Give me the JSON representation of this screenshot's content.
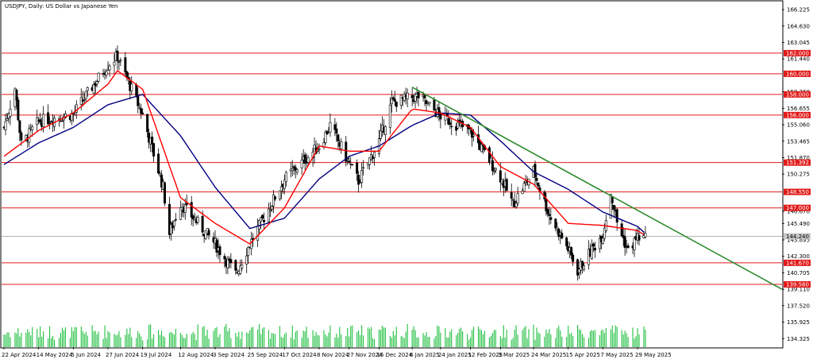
{
  "chart_title": "USDJPY, Daily:  US Dollar vs Japanese Yen",
  "price_scale_ticks": [
    "166.225",
    "164.630",
    "163.045",
    "161.440",
    "158.260",
    "156.655",
    "155.060",
    "153.465",
    "151.870",
    "150.275",
    "146.670",
    "145.490",
    "143.895",
    "142.300",
    "140.705",
    "139.110",
    "137.520",
    "135.925",
    "134.325"
  ],
  "time_ticks": [
    "22 Apr 2024",
    "14 May 2024",
    "5 Jun 2024",
    "27 Jun 2024",
    "19 Jul 2024",
    "12 Aug 2024",
    "3 Sep 2024",
    "25 Sep 2024",
    "17 Oct 2024",
    "8 Nov 2024",
    "27 Nov 2024",
    "16 Dec 2024",
    "6 Jan 2025",
    "24 Jan 2025",
    "12 Feb 2025",
    "3 Mar 2025",
    "24 Mar 2025",
    "15 Apr 2025",
    "7 May 2025",
    "29 May 2025"
  ],
  "horizontal_levels": [
    "162.000",
    "160.000",
    "158.000",
    "156.000",
    "151.392",
    "148.550",
    "147.000",
    "144.240",
    "141.670",
    "139.580"
  ],
  "current_price": "144.240",
  "colors": {
    "background": "#ffffff",
    "candle": "#000000",
    "level_line": "#e21a1a",
    "level_label_bg": "#e21a1a",
    "current_price_line": "#b4b4b4",
    "ma_fast": "#ff0000",
    "ma_slow": "#000080",
    "trendline": "#2e8b2e",
    "volume": "#1fbf3f"
  },
  "chart_data": {
    "type": "candlestick",
    "title": "USDJPY, Daily:  US Dollar vs Japanese Yen",
    "ylim": [
      133.5,
      167.0
    ],
    "x_range": [
      "22 Apr 2024",
      "29 May 2025"
    ],
    "grid": false,
    "close_anchors": [
      {
        "date": "22 Apr 2024",
        "value": 154.8
      },
      {
        "date": "29 Apr 2024",
        "value": 158.6
      },
      {
        "date": "3 May 2024",
        "value": 153.1
      },
      {
        "date": "14 May 2024",
        "value": 155.4
      },
      {
        "date": "5 Jun 2024",
        "value": 156.1
      },
      {
        "date": "27 Jun 2024",
        "value": 160.9
      },
      {
        "date": "3 Jul 2024",
        "value": 161.7
      },
      {
        "date": "19 Jul 2024",
        "value": 156.0
      },
      {
        "date": "1 Aug 2024",
        "value": 149.0
      },
      {
        "date": "5 Aug 2024",
        "value": 144.5
      },
      {
        "date": "12 Aug 2024",
        "value": 147.5
      },
      {
        "date": "3 Sep 2024",
        "value": 143.5
      },
      {
        "date": "16 Sep 2024",
        "value": 140.6
      },
      {
        "date": "25 Sep 2024",
        "value": 143.5
      },
      {
        "date": "17 Oct 2024",
        "value": 149.8
      },
      {
        "date": "8 Nov 2024",
        "value": 153.0
      },
      {
        "date": "15 Nov 2024",
        "value": 155.0
      },
      {
        "date": "27 Nov 2024",
        "value": 151.3
      },
      {
        "date": "3 Dec 2024",
        "value": 149.6
      },
      {
        "date": "16 Dec 2024",
        "value": 153.5
      },
      {
        "date": "24 Dec 2024",
        "value": 157.2
      },
      {
        "date": "6 Jan 2025",
        "value": 157.7
      },
      {
        "date": "10 Jan 2025",
        "value": 157.8
      },
      {
        "date": "24 Jan 2025",
        "value": 155.9
      },
      {
        "date": "12 Feb 2025",
        "value": 154.4
      },
      {
        "date": "3 Mar 2025",
        "value": 150.0
      },
      {
        "date": "11 Mar 2025",
        "value": 147.4
      },
      {
        "date": "24 Mar 2025",
        "value": 150.6
      },
      {
        "date": "3 Apr 2025",
        "value": 146.3
      },
      {
        "date": "15 Apr 2025",
        "value": 143.0
      },
      {
        "date": "21 Apr 2025",
        "value": 140.9
      },
      {
        "date": "7 May 2025",
        "value": 144.5
      },
      {
        "date": "12 May 2025",
        "value": 148.5
      },
      {
        "date": "16 May 2025",
        "value": 145.6
      },
      {
        "date": "23 May 2025",
        "value": 142.8
      },
      {
        "date": "29 May 2025",
        "value": 144.2
      },
      {
        "date": "3 Jun 2025",
        "value": 144.0
      }
    ],
    "ma_fast_anchors": [
      {
        "date": "22 Apr 2024",
        "value": 152.0
      },
      {
        "date": "14 May 2024",
        "value": 154.5
      },
      {
        "date": "5 Jun 2024",
        "value": 156.2
      },
      {
        "date": "27 Jun 2024",
        "value": 159.0
      },
      {
        "date": "3 Jul 2024",
        "value": 160.3
      },
      {
        "date": "19 Jul 2024",
        "value": 158.5
      },
      {
        "date": "12 Aug 2024",
        "value": 148.0
      },
      {
        "date": "3 Sep 2024",
        "value": 145.5
      },
      {
        "date": "25 Sep 2024",
        "value": 143.5
      },
      {
        "date": "17 Oct 2024",
        "value": 147.0
      },
      {
        "date": "8 Nov 2024",
        "value": 153.0
      },
      {
        "date": "27 Nov 2024",
        "value": 152.5
      },
      {
        "date": "16 Dec 2024",
        "value": 152.5
      },
      {
        "date": "6 Jan 2025",
        "value": 156.6
      },
      {
        "date": "24 Jan 2025",
        "value": 156.2
      },
      {
        "date": "12 Feb 2025",
        "value": 154.8
      },
      {
        "date": "3 Mar 2025",
        "value": 151.0
      },
      {
        "date": "24 Mar 2025",
        "value": 149.3
      },
      {
        "date": "15 Apr 2025",
        "value": 145.5
      },
      {
        "date": "7 May 2025",
        "value": 145.3
      },
      {
        "date": "29 May 2025",
        "value": 144.8
      },
      {
        "date": "3 Jun 2025",
        "value": 144.3
      }
    ],
    "ma_slow_anchors": [
      {
        "date": "22 Apr 2024",
        "value": 151.2
      },
      {
        "date": "14 May 2024",
        "value": 153.3
      },
      {
        "date": "5 Jun 2024",
        "value": 154.8
      },
      {
        "date": "27 Jun 2024",
        "value": 157.0
      },
      {
        "date": "19 Jul 2024",
        "value": 158.0
      },
      {
        "date": "12 Aug 2024",
        "value": 154.0
      },
      {
        "date": "3 Sep 2024",
        "value": 149.0
      },
      {
        "date": "25 Sep 2024",
        "value": 145.0
      },
      {
        "date": "17 Oct 2024",
        "value": 146.0
      },
      {
        "date": "8 Nov 2024",
        "value": 149.8
      },
      {
        "date": "27 Nov 2024",
        "value": 152.0
      },
      {
        "date": "16 Dec 2024",
        "value": 153.0
      },
      {
        "date": "6 Jan 2025",
        "value": 155.0
      },
      {
        "date": "24 Jan 2025",
        "value": 156.2
      },
      {
        "date": "12 Feb 2025",
        "value": 156.0
      },
      {
        "date": "3 Mar 2025",
        "value": 153.5
      },
      {
        "date": "24 Mar 2025",
        "value": 150.5
      },
      {
        "date": "15 Apr 2025",
        "value": 148.8
      },
      {
        "date": "7 May 2025",
        "value": 146.6
      },
      {
        "date": "29 May 2025",
        "value": 145.2
      },
      {
        "date": "3 Jun 2025",
        "value": 144.5
      }
    ],
    "trendline": [
      {
        "date": "6 Jan 2025",
        "value": 158.7
      },
      {
        "date": "7 May 2025",
        "value": 148.6
      }
    ],
    "volume_note": "relative tick volume shown as histogram"
  }
}
